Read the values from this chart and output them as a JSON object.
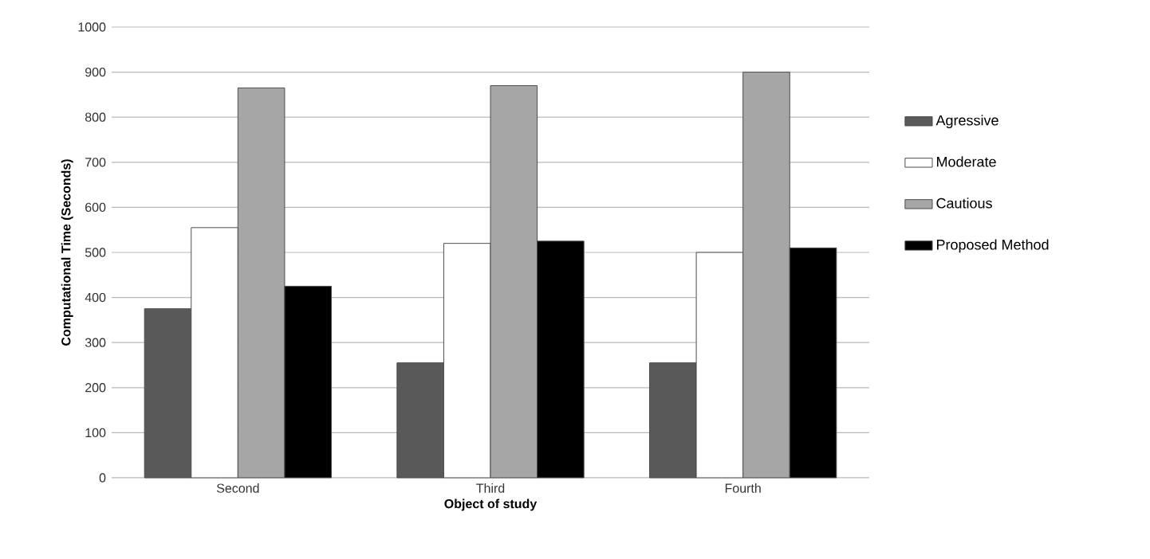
{
  "chart_data": {
    "type": "bar",
    "xlabel": "Object of study",
    "ylabel": "Computational Time (Seconds)",
    "categories": [
      "Second",
      "Third",
      "Fourth"
    ],
    "series": [
      {
        "name": "Agressive",
        "color": "#595959",
        "values": [
          375,
          255,
          255
        ]
      },
      {
        "name": "Moderate",
        "color": "#ffffff",
        "values": [
          555,
          520,
          500
        ]
      },
      {
        "name": "Cautious",
        "color": "#a6a6a6",
        "values": [
          865,
          870,
          900
        ]
      },
      {
        "name": "Proposed Method",
        "color": "#000000",
        "values": [
          425,
          525,
          510
        ]
      }
    ],
    "ylim": [
      0,
      1000
    ],
    "yticks": [
      0,
      100,
      200,
      300,
      400,
      500,
      600,
      700,
      800,
      900,
      1000
    ],
    "grid": "y",
    "legend": "right"
  }
}
